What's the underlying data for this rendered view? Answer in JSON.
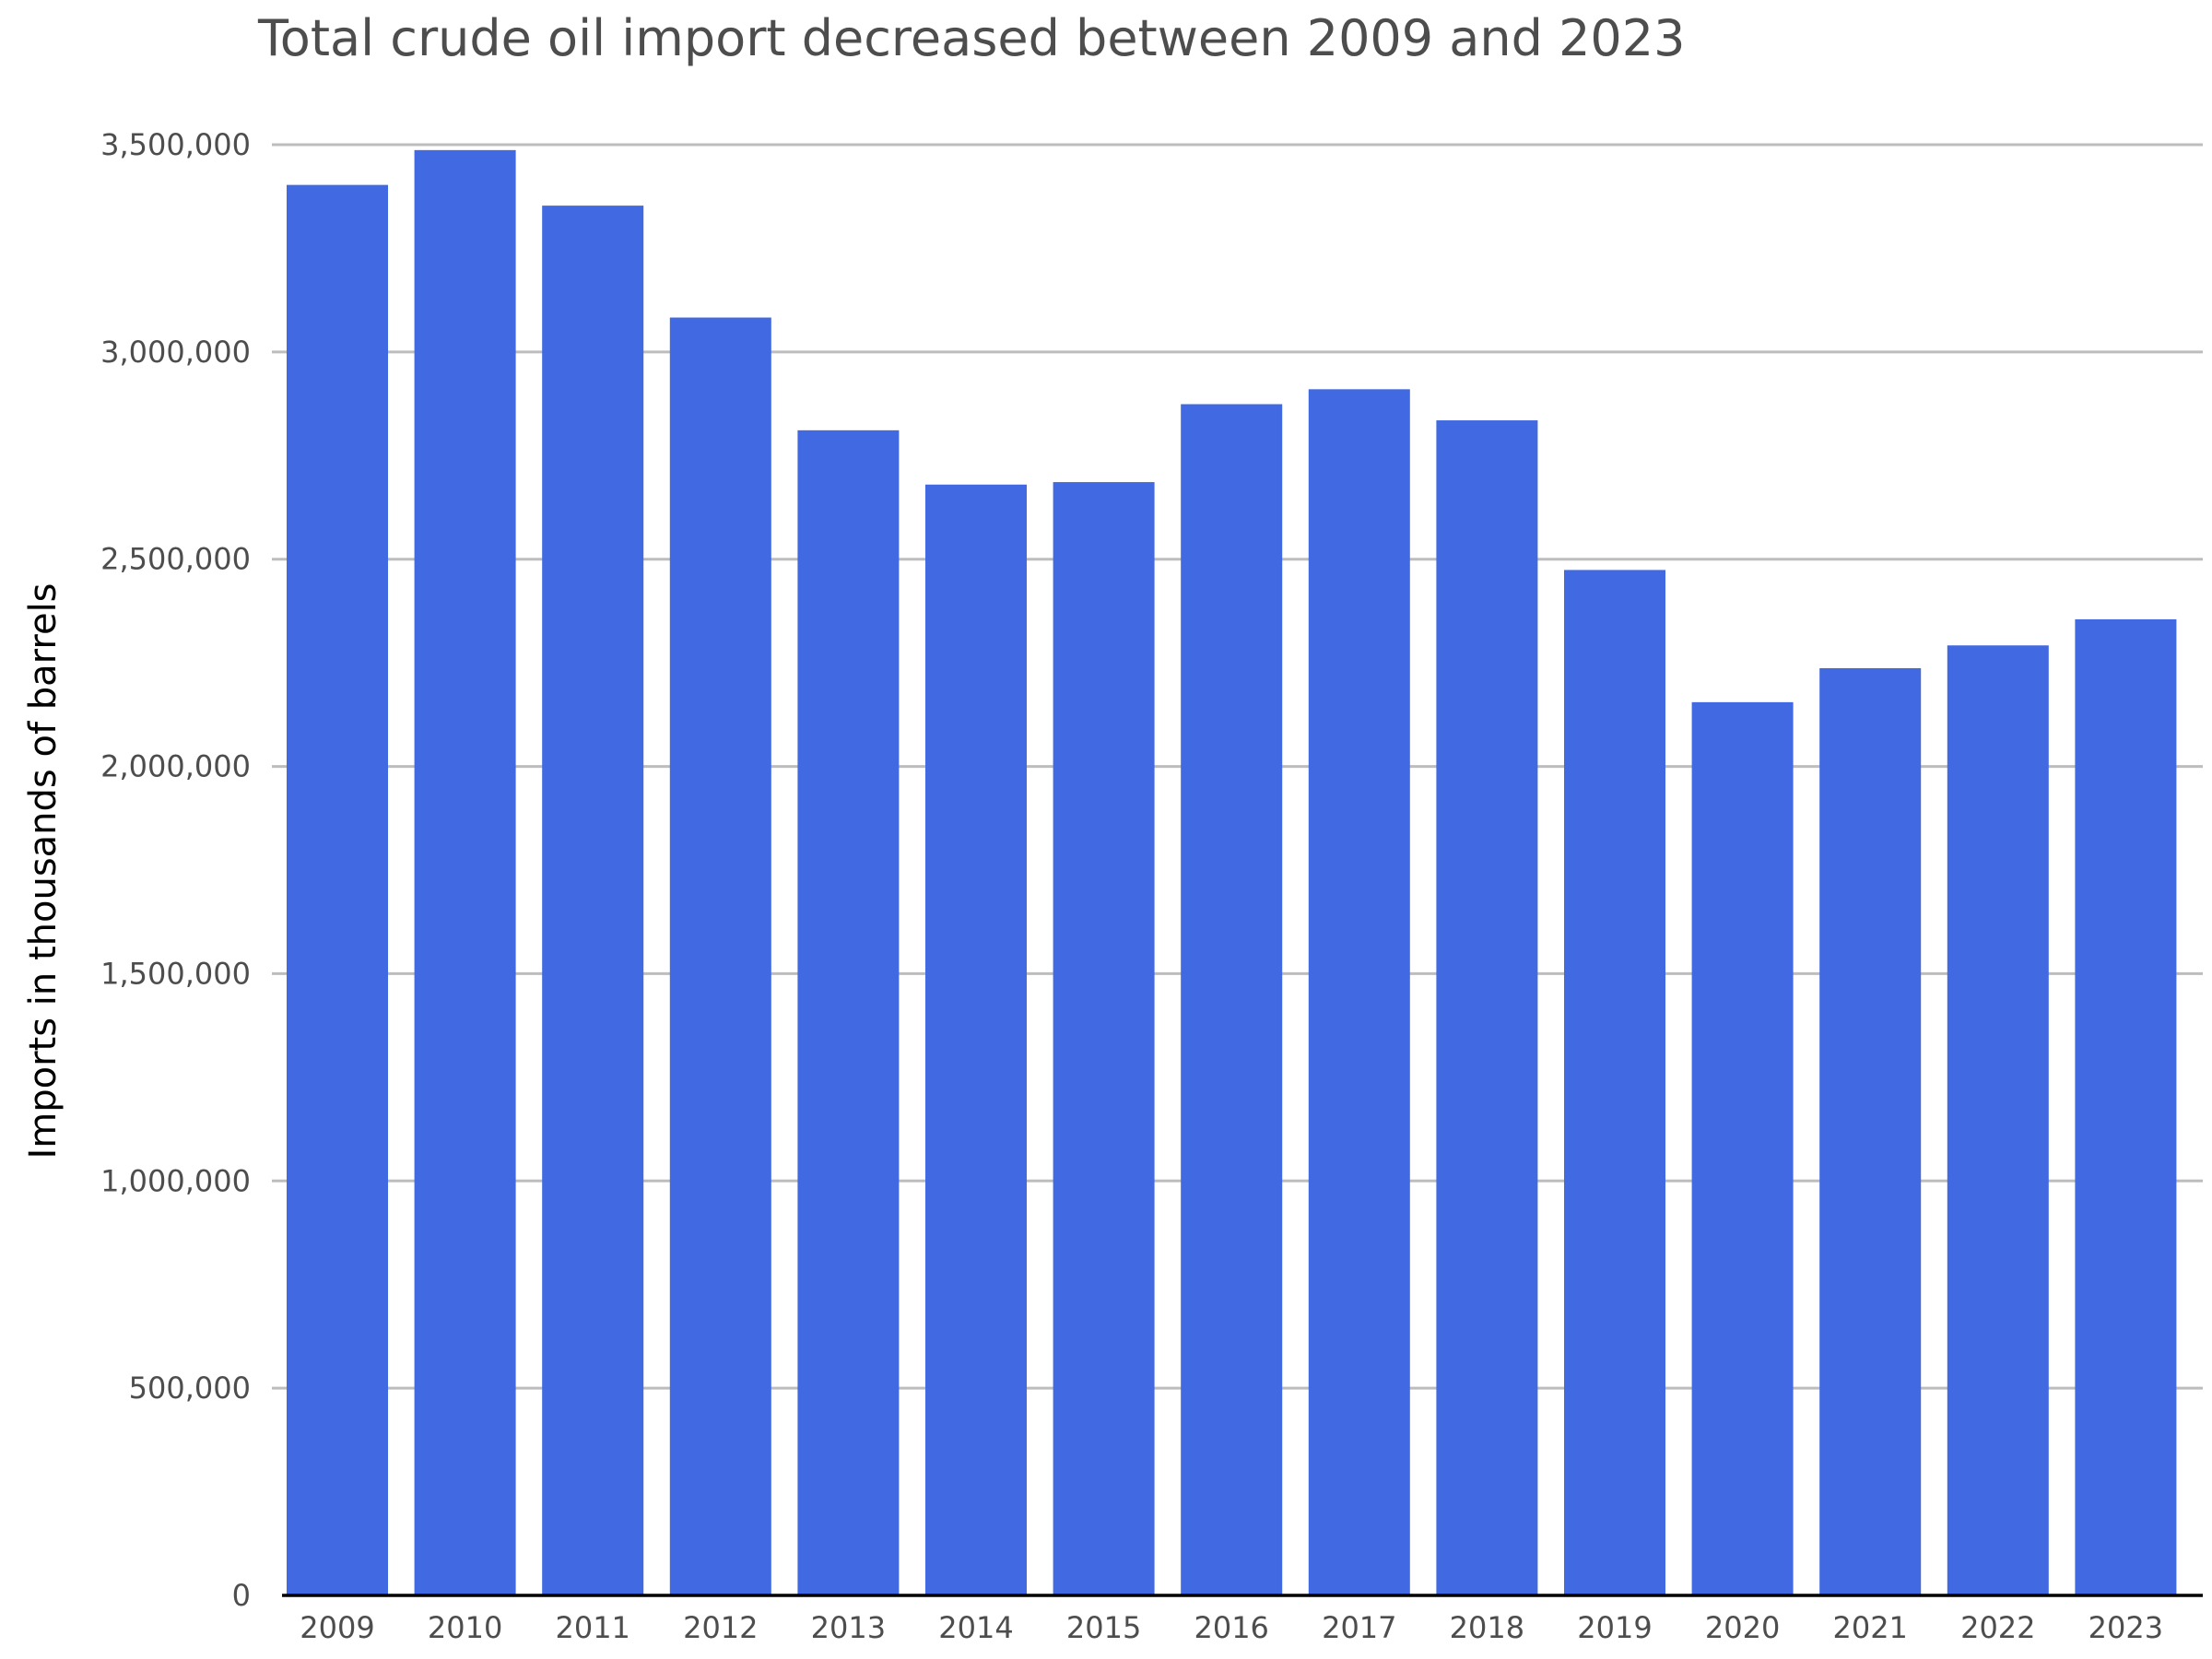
{
  "colors": {
    "bar": "#4169e1",
    "grid": "#bdbdbd",
    "title": "#4d4d4d",
    "tick_text": "#4d4d4d",
    "axis_line": "#000000",
    "background": "#ffffff"
  },
  "chart_data": {
    "type": "bar",
    "title": "Total crude oil import decreased between 2009 and 2023",
    "xlabel": "",
    "ylabel": "Imports in thousands of barrels",
    "categories": [
      "2009",
      "2010",
      "2011",
      "2012",
      "2013",
      "2014",
      "2015",
      "2016",
      "2017",
      "2018",
      "2019",
      "2020",
      "2021",
      "2022",
      "2023"
    ],
    "values": [
      3403000,
      3487000,
      3353000,
      3083000,
      2811000,
      2680000,
      2686000,
      2874000,
      2910000,
      2835000,
      2474000,
      2155000,
      2237000,
      2292000,
      2355000
    ],
    "ylim": [
      0,
      3500000
    ],
    "yticks": [
      0,
      500000,
      1000000,
      1500000,
      2000000,
      2500000,
      3000000,
      3500000
    ],
    "ytick_labels": [
      "0",
      "500,000",
      "1,000,000",
      "1,500,000",
      "2,000,000",
      "2,500,000",
      "3,000,000",
      "3,500,000"
    ],
    "grid": true,
    "legend": "none"
  }
}
